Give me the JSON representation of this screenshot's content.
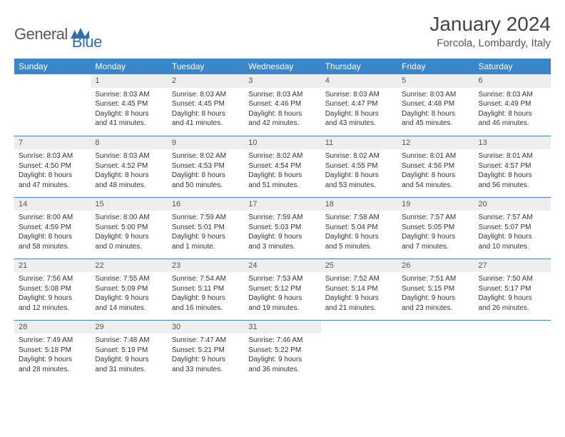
{
  "logo": {
    "general": "General",
    "blue": "Blue"
  },
  "header": {
    "title": "January 2024",
    "location": "Forcola, Lombardy, Italy"
  },
  "colors": {
    "accent": "#3b86c8",
    "daynum_bg": "#eeeeee"
  },
  "weekdays": [
    "Sunday",
    "Monday",
    "Tuesday",
    "Wednesday",
    "Thursday",
    "Friday",
    "Saturday"
  ],
  "weeks": [
    [
      null,
      {
        "n": "1",
        "sr": "Sunrise: 8:03 AM",
        "ss": "Sunset: 4:45 PM",
        "d1": "Daylight: 8 hours",
        "d2": "and 41 minutes."
      },
      {
        "n": "2",
        "sr": "Sunrise: 8:03 AM",
        "ss": "Sunset: 4:45 PM",
        "d1": "Daylight: 8 hours",
        "d2": "and 41 minutes."
      },
      {
        "n": "3",
        "sr": "Sunrise: 8:03 AM",
        "ss": "Sunset: 4:46 PM",
        "d1": "Daylight: 8 hours",
        "d2": "and 42 minutes."
      },
      {
        "n": "4",
        "sr": "Sunrise: 8:03 AM",
        "ss": "Sunset: 4:47 PM",
        "d1": "Daylight: 8 hours",
        "d2": "and 43 minutes."
      },
      {
        "n": "5",
        "sr": "Sunrise: 8:03 AM",
        "ss": "Sunset: 4:48 PM",
        "d1": "Daylight: 8 hours",
        "d2": "and 45 minutes."
      },
      {
        "n": "6",
        "sr": "Sunrise: 8:03 AM",
        "ss": "Sunset: 4:49 PM",
        "d1": "Daylight: 8 hours",
        "d2": "and 46 minutes."
      }
    ],
    [
      {
        "n": "7",
        "sr": "Sunrise: 8:03 AM",
        "ss": "Sunset: 4:50 PM",
        "d1": "Daylight: 8 hours",
        "d2": "and 47 minutes."
      },
      {
        "n": "8",
        "sr": "Sunrise: 8:03 AM",
        "ss": "Sunset: 4:52 PM",
        "d1": "Daylight: 8 hours",
        "d2": "and 48 minutes."
      },
      {
        "n": "9",
        "sr": "Sunrise: 8:02 AM",
        "ss": "Sunset: 4:53 PM",
        "d1": "Daylight: 8 hours",
        "d2": "and 50 minutes."
      },
      {
        "n": "10",
        "sr": "Sunrise: 8:02 AM",
        "ss": "Sunset: 4:54 PM",
        "d1": "Daylight: 8 hours",
        "d2": "and 51 minutes."
      },
      {
        "n": "11",
        "sr": "Sunrise: 8:02 AM",
        "ss": "Sunset: 4:55 PM",
        "d1": "Daylight: 8 hours",
        "d2": "and 53 minutes."
      },
      {
        "n": "12",
        "sr": "Sunrise: 8:01 AM",
        "ss": "Sunset: 4:56 PM",
        "d1": "Daylight: 8 hours",
        "d2": "and 54 minutes."
      },
      {
        "n": "13",
        "sr": "Sunrise: 8:01 AM",
        "ss": "Sunset: 4:57 PM",
        "d1": "Daylight: 8 hours",
        "d2": "and 56 minutes."
      }
    ],
    [
      {
        "n": "14",
        "sr": "Sunrise: 8:00 AM",
        "ss": "Sunset: 4:59 PM",
        "d1": "Daylight: 8 hours",
        "d2": "and 58 minutes."
      },
      {
        "n": "15",
        "sr": "Sunrise: 8:00 AM",
        "ss": "Sunset: 5:00 PM",
        "d1": "Daylight: 9 hours",
        "d2": "and 0 minutes."
      },
      {
        "n": "16",
        "sr": "Sunrise: 7:59 AM",
        "ss": "Sunset: 5:01 PM",
        "d1": "Daylight: 9 hours",
        "d2": "and 1 minute."
      },
      {
        "n": "17",
        "sr": "Sunrise: 7:59 AM",
        "ss": "Sunset: 5:03 PM",
        "d1": "Daylight: 9 hours",
        "d2": "and 3 minutes."
      },
      {
        "n": "18",
        "sr": "Sunrise: 7:58 AM",
        "ss": "Sunset: 5:04 PM",
        "d1": "Daylight: 9 hours",
        "d2": "and 5 minutes."
      },
      {
        "n": "19",
        "sr": "Sunrise: 7:57 AM",
        "ss": "Sunset: 5:05 PM",
        "d1": "Daylight: 9 hours",
        "d2": "and 7 minutes."
      },
      {
        "n": "20",
        "sr": "Sunrise: 7:57 AM",
        "ss": "Sunset: 5:07 PM",
        "d1": "Daylight: 9 hours",
        "d2": "and 10 minutes."
      }
    ],
    [
      {
        "n": "21",
        "sr": "Sunrise: 7:56 AM",
        "ss": "Sunset: 5:08 PM",
        "d1": "Daylight: 9 hours",
        "d2": "and 12 minutes."
      },
      {
        "n": "22",
        "sr": "Sunrise: 7:55 AM",
        "ss": "Sunset: 5:09 PM",
        "d1": "Daylight: 9 hours",
        "d2": "and 14 minutes."
      },
      {
        "n": "23",
        "sr": "Sunrise: 7:54 AM",
        "ss": "Sunset: 5:11 PM",
        "d1": "Daylight: 9 hours",
        "d2": "and 16 minutes."
      },
      {
        "n": "24",
        "sr": "Sunrise: 7:53 AM",
        "ss": "Sunset: 5:12 PM",
        "d1": "Daylight: 9 hours",
        "d2": "and 19 minutes."
      },
      {
        "n": "25",
        "sr": "Sunrise: 7:52 AM",
        "ss": "Sunset: 5:14 PM",
        "d1": "Daylight: 9 hours",
        "d2": "and 21 minutes."
      },
      {
        "n": "26",
        "sr": "Sunrise: 7:51 AM",
        "ss": "Sunset: 5:15 PM",
        "d1": "Daylight: 9 hours",
        "d2": "and 23 minutes."
      },
      {
        "n": "27",
        "sr": "Sunrise: 7:50 AM",
        "ss": "Sunset: 5:17 PM",
        "d1": "Daylight: 9 hours",
        "d2": "and 26 minutes."
      }
    ],
    [
      {
        "n": "28",
        "sr": "Sunrise: 7:49 AM",
        "ss": "Sunset: 5:18 PM",
        "d1": "Daylight: 9 hours",
        "d2": "and 28 minutes."
      },
      {
        "n": "29",
        "sr": "Sunrise: 7:48 AM",
        "ss": "Sunset: 5:19 PM",
        "d1": "Daylight: 9 hours",
        "d2": "and 31 minutes."
      },
      {
        "n": "30",
        "sr": "Sunrise: 7:47 AM",
        "ss": "Sunset: 5:21 PM",
        "d1": "Daylight: 9 hours",
        "d2": "and 33 minutes."
      },
      {
        "n": "31",
        "sr": "Sunrise: 7:46 AM",
        "ss": "Sunset: 5:22 PM",
        "d1": "Daylight: 9 hours",
        "d2": "and 36 minutes."
      },
      null,
      null,
      null
    ]
  ]
}
